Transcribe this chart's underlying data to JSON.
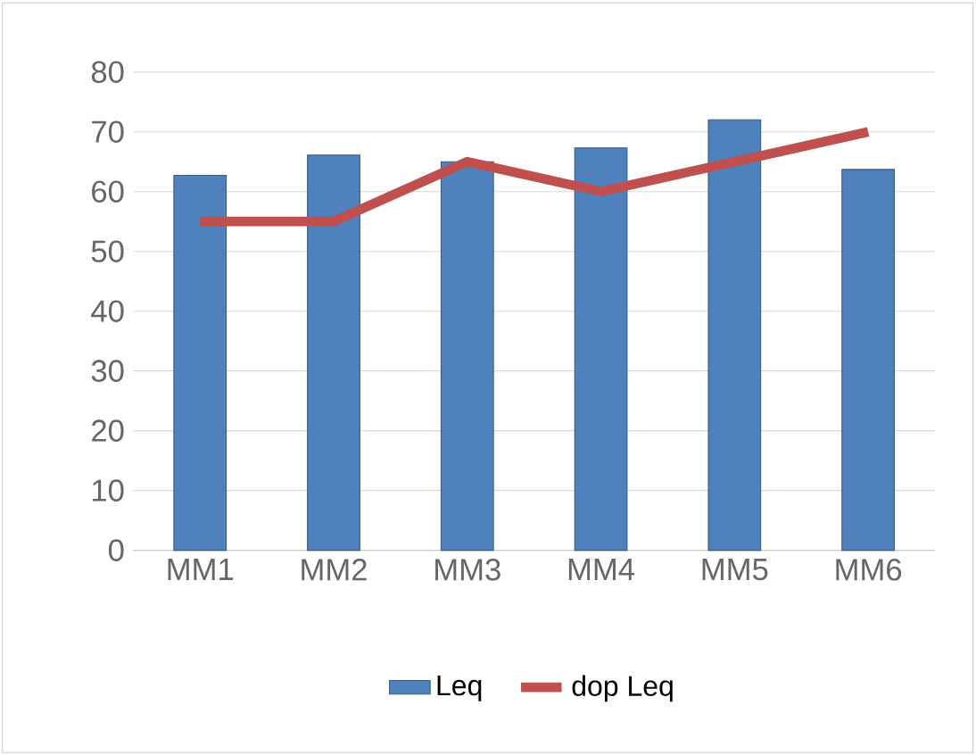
{
  "chart_data": {
    "type": "bar",
    "categories": [
      "MM1",
      "MM2",
      "MM3",
      "MM4",
      "MM5",
      "MM6"
    ],
    "series": [
      {
        "name": "Leq",
        "color": "#4f81bd",
        "values": [
          62.7,
          66.1,
          65,
          67.3,
          72,
          63.7
        ]
      },
      {
        "name": "dop Leq",
        "type": "line",
        "color": "#c0504d",
        "values": [
          55,
          55,
          65,
          60,
          65,
          70
        ]
      }
    ],
    "ylim": [
      0,
      80
    ],
    "yticks": [
      0,
      10,
      20,
      30,
      40,
      50,
      60,
      70,
      80
    ],
    "grid": "y",
    "legend": "bottom",
    "marker": "none",
    "line_style": "solid"
  }
}
